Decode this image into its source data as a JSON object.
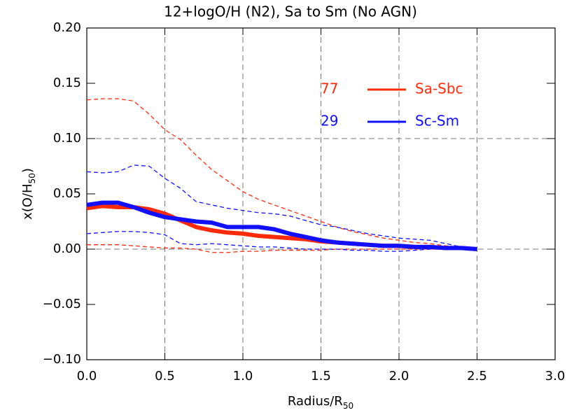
{
  "chart_data": {
    "type": "line",
    "title": "12+logO/H (N2), Sa to Sm (No AGN)",
    "xlabel": {
      "main": "Radius/R",
      "sub": "50"
    },
    "ylabel": {
      "main": "x(O/H",
      "sub": "50",
      "tail": ")"
    },
    "xlim": [
      0,
      3
    ],
    "ylim": [
      -0.1,
      0.2
    ],
    "xticks": [
      {
        "value": 0,
        "label": "0.0"
      },
      {
        "value": 0.5,
        "label": "0.5"
      },
      {
        "value": 1,
        "label": "1.0"
      },
      {
        "value": 1.5,
        "label": "1.5"
      },
      {
        "value": 2,
        "label": "2.0"
      },
      {
        "value": 2.5,
        "label": "2.5"
      },
      {
        "value": 3,
        "label": "3.0"
      }
    ],
    "yticks": [
      {
        "value": -0.1,
        "label": "−0.10"
      },
      {
        "value": -0.05,
        "label": "−0.05"
      },
      {
        "value": 0,
        "label": "0.00"
      },
      {
        "value": 0.05,
        "label": "0.05"
      },
      {
        "value": 0.1,
        "label": "0.10"
      },
      {
        "value": 0.15,
        "label": "0.15"
      },
      {
        "value": 0.2,
        "label": "0.20"
      }
    ],
    "vgrid": [
      0.5,
      1,
      1.5,
      2,
      2.5
    ],
    "hgrid": [
      0.1,
      0
    ],
    "x": [
      0,
      0.1,
      0.2,
      0.3,
      0.4,
      0.5,
      0.6,
      0.7,
      0.8,
      0.9,
      1.0,
      1.1,
      1.2,
      1.3,
      1.4,
      1.5,
      1.6,
      1.7,
      1.8,
      1.9,
      2.0,
      2.1,
      2.2,
      2.3,
      2.4,
      2.5
    ],
    "series": [
      {
        "name": "Sa-Sbc",
        "count": "77",
        "color": "#ff2a0a",
        "values": [
          0.037,
          0.039,
          0.038,
          0.038,
          0.036,
          0.032,
          0.026,
          0.02,
          0.017,
          0.015,
          0.014,
          0.012,
          0.011,
          0.01,
          0.009,
          0.007,
          0.006,
          0.005,
          0.004,
          0.003,
          0.003,
          0.002,
          0.002,
          0.001,
          0.001,
          0.0
        ],
        "upper": [
          0.135,
          0.136,
          0.136,
          0.134,
          0.122,
          0.108,
          0.099,
          0.085,
          0.072,
          0.062,
          0.052,
          0.045,
          0.04,
          0.035,
          0.03,
          0.025,
          0.02,
          0.016,
          0.013,
          0.01,
          0.008,
          0.006,
          0.005,
          0.003,
          0.002,
          0.001
        ],
        "lower": [
          0.004,
          0.004,
          0.004,
          0.003,
          0.002,
          0.001,
          0.001,
          0.0,
          -0.003,
          -0.003,
          -0.002,
          -0.002,
          -0.001,
          -0.001,
          -0.001,
          -0.001,
          0.0,
          0.0,
          0.0,
          0.0,
          0.0,
          0.0,
          0.0,
          0.0,
          0.0,
          0.0
        ]
      },
      {
        "name": "Sc-Sm",
        "count": "29",
        "color": "#1010ff",
        "values": [
          0.04,
          0.042,
          0.042,
          0.038,
          0.033,
          0.029,
          0.027,
          0.025,
          0.024,
          0.02,
          0.02,
          0.02,
          0.018,
          0.014,
          0.011,
          0.008,
          0.006,
          0.005,
          0.004,
          0.003,
          0.003,
          0.002,
          0.002,
          0.001,
          0.001,
          0.0
        ],
        "upper": [
          0.07,
          0.069,
          0.07,
          0.076,
          0.075,
          0.064,
          0.055,
          0.043,
          0.04,
          0.037,
          0.035,
          0.033,
          0.032,
          0.03,
          0.026,
          0.022,
          0.02,
          0.017,
          0.014,
          0.012,
          0.01,
          0.009,
          0.008,
          0.005,
          0.002,
          0.001
        ],
        "lower": [
          0.014,
          0.015,
          0.016,
          0.016,
          0.015,
          0.013,
          0.005,
          0.004,
          0.005,
          0.004,
          0.003,
          0.002,
          0.002,
          0.001,
          0.0,
          0.0,
          0.0,
          -0.001,
          -0.001,
          -0.002,
          -0.002,
          -0.001,
          0.0,
          0.0,
          0.0,
          0.0
        ]
      }
    ]
  }
}
